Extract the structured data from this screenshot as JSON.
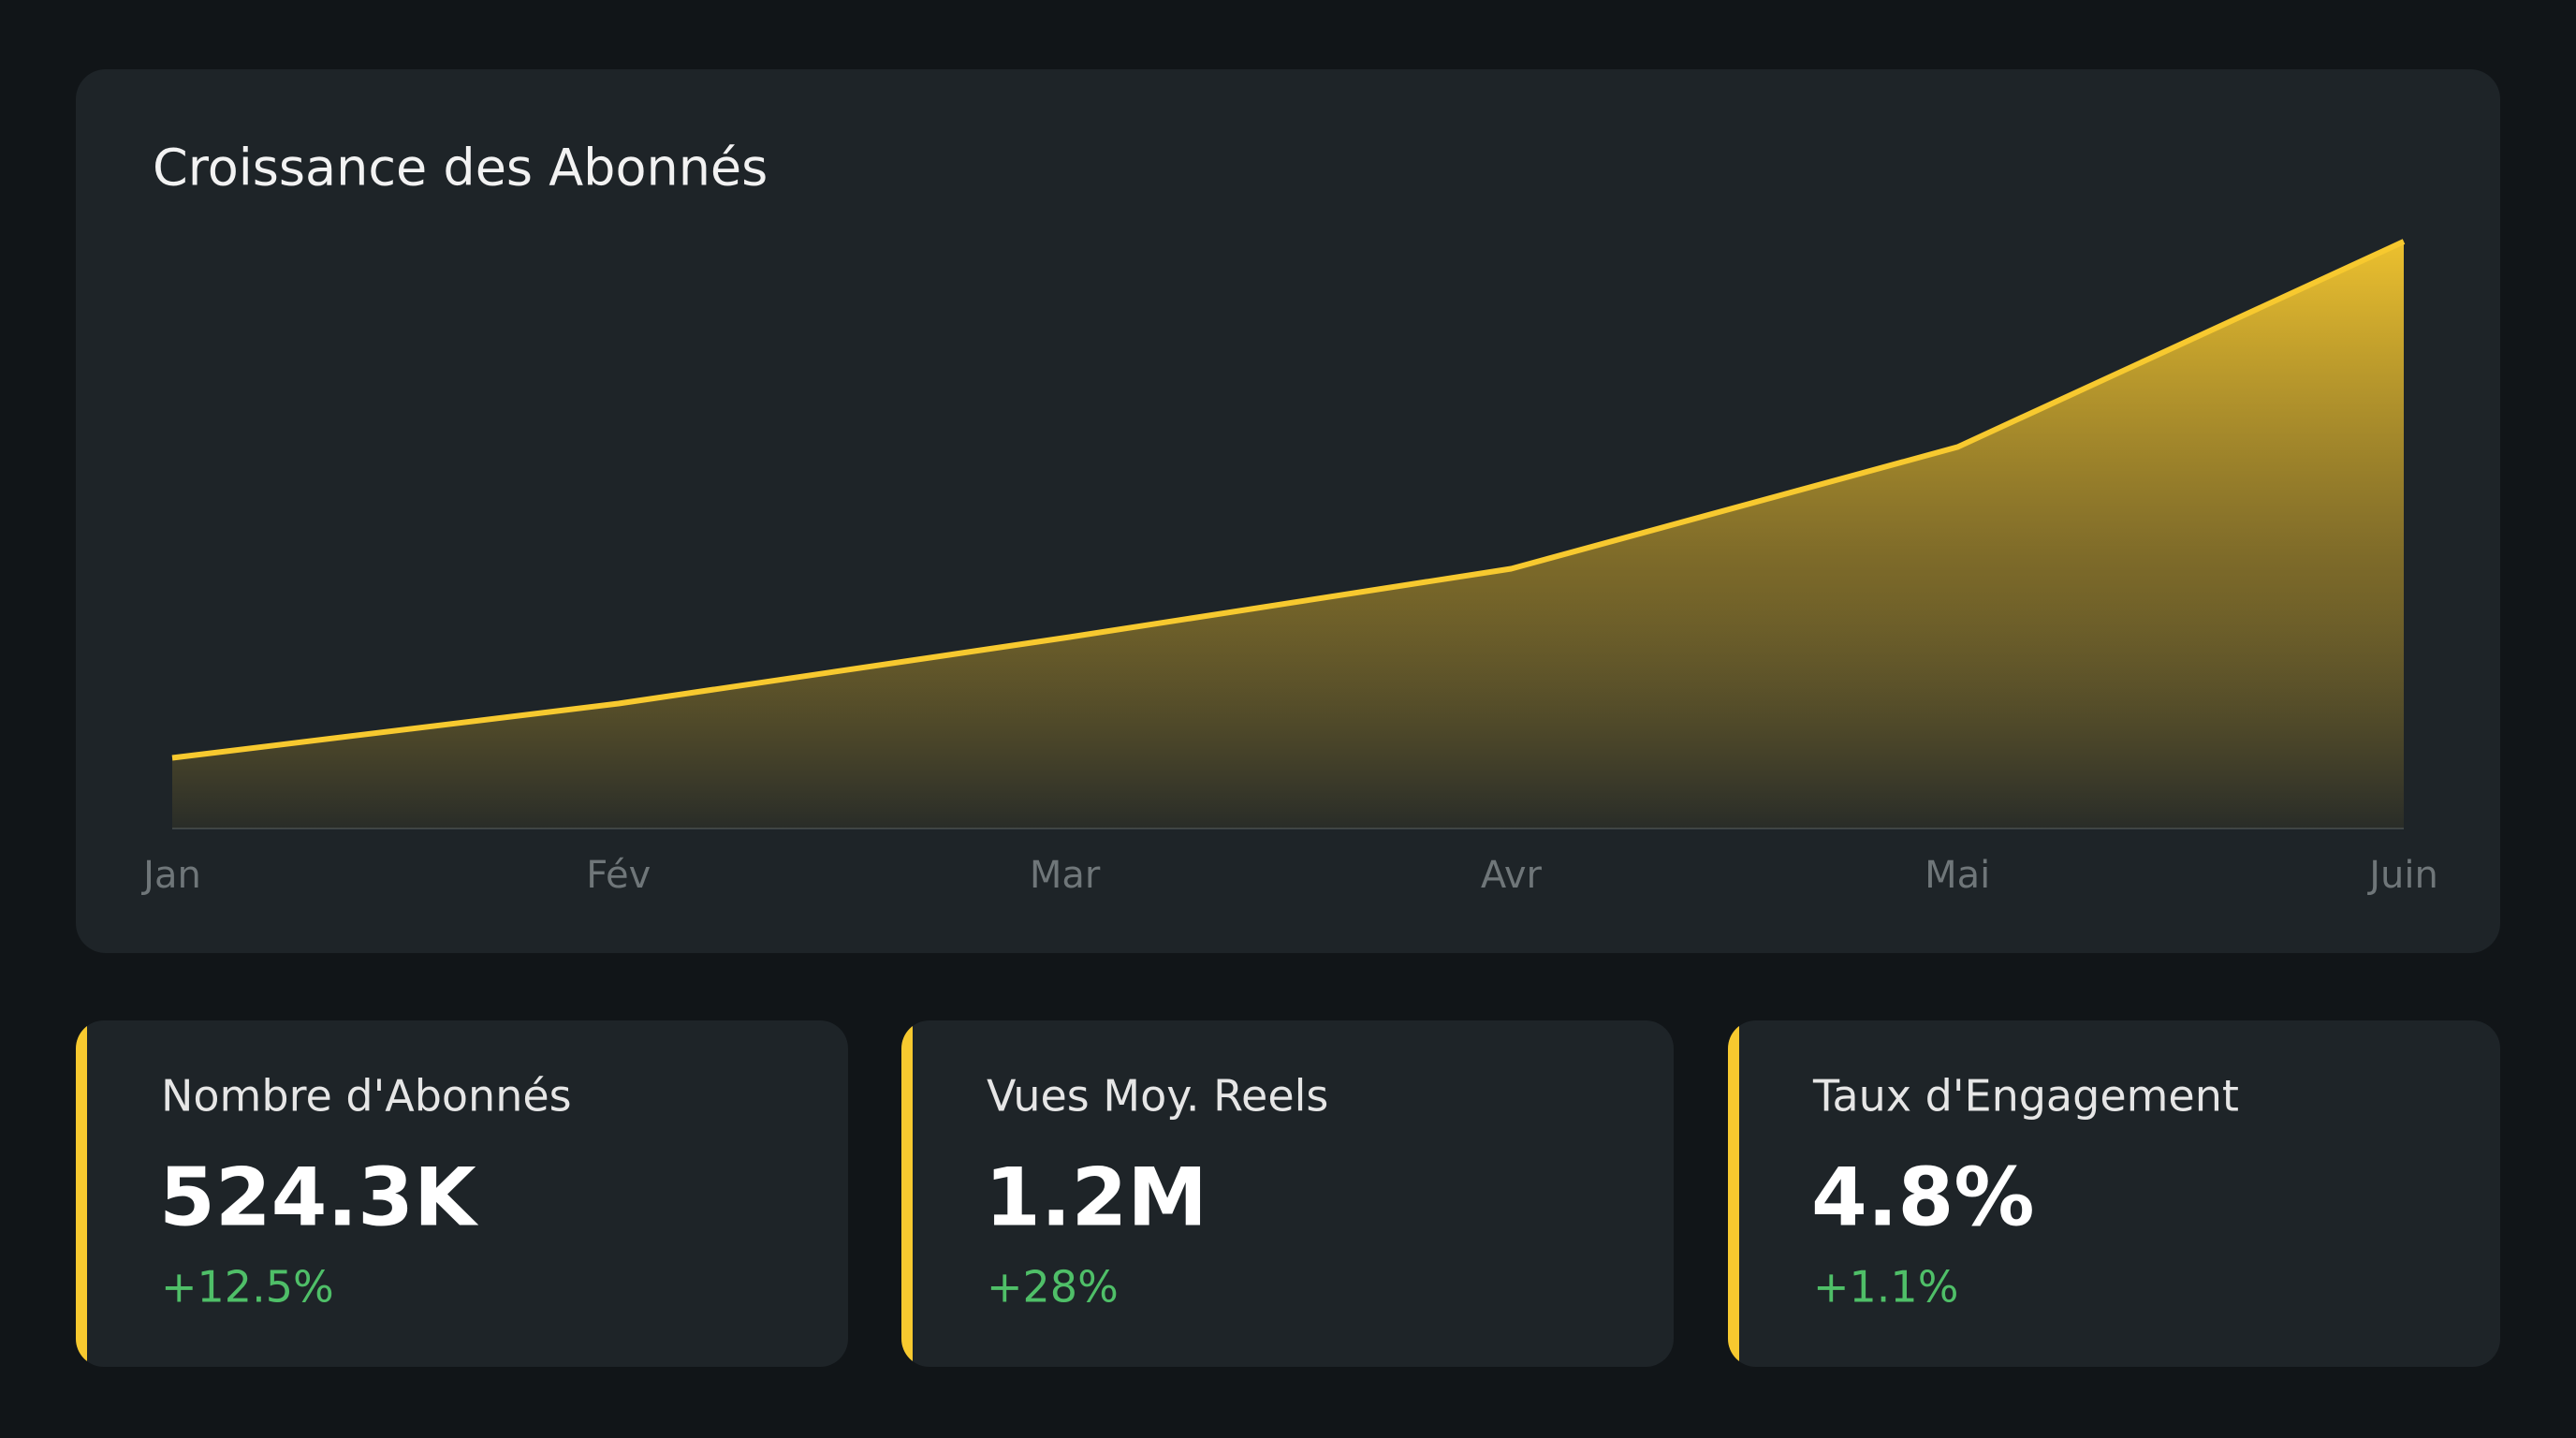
{
  "chart_data": {
    "type": "area",
    "title": "Croissance des Abonnés",
    "categories": [
      "Jan",
      "Fév",
      "Mar",
      "Avr",
      "Mai",
      "Juin"
    ],
    "values": [
      43,
      76,
      116,
      158,
      232,
      357
    ],
    "color": "#f7c92f"
  },
  "cards": [
    {
      "label": "Nombre d'Abonnés",
      "value": "524.3K",
      "change": "+12.5%"
    },
    {
      "label": "Vues Moy. Reels",
      "value": "1.2M",
      "change": "+28%"
    },
    {
      "label": "Taux d'Engagement",
      "value": "4.8%",
      "change": "+1.1%"
    }
  ]
}
